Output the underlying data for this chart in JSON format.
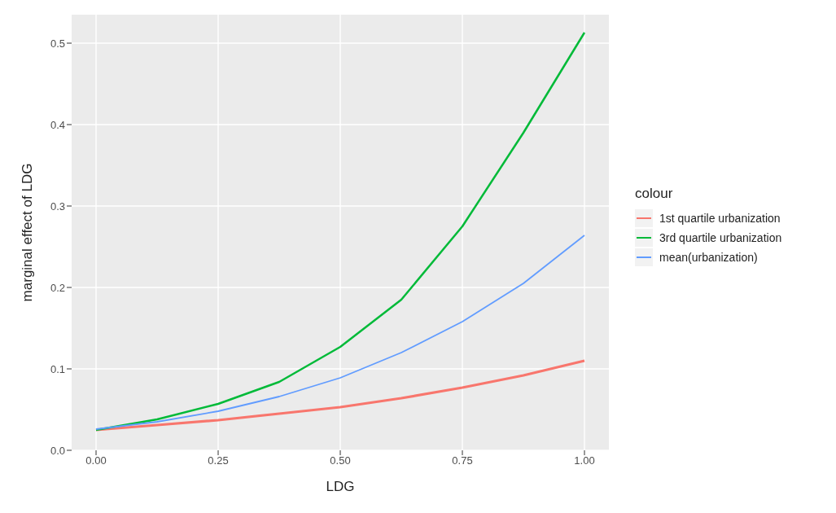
{
  "chart_data": {
    "type": "line",
    "xlabel": "LDG",
    "ylabel": "marginal effect of LDG",
    "legend_title": "colour",
    "legend": "right",
    "grid": true,
    "marker": "none",
    "line_style": "solid",
    "x": [
      0,
      0.125,
      0.25,
      0.375,
      0.5,
      0.625,
      0.75,
      0.875,
      1
    ],
    "xlim": [
      -0.05,
      1.05
    ],
    "xticks": [
      {
        "value": 0,
        "label": "0.00"
      },
      {
        "value": 0.25,
        "label": "0.25"
      },
      {
        "value": 0.5,
        "label": "0.50"
      },
      {
        "value": 0.75,
        "label": "0.75"
      },
      {
        "value": 1,
        "label": "1.00"
      }
    ],
    "ylim": [
      0,
      0.535
    ],
    "yticks": [
      {
        "value": 0,
        "label": "0.0"
      },
      {
        "value": 0.1,
        "label": "0.1"
      },
      {
        "value": 0.2,
        "label": "0.2"
      },
      {
        "value": 0.3,
        "label": "0.3"
      },
      {
        "value": 0.4,
        "label": "0.4"
      },
      {
        "value": 0.5,
        "label": "0.5"
      }
    ],
    "series": [
      {
        "name": "1st quartile urbanization",
        "color": "#f8766d",
        "values": [
          0.025,
          0.031,
          0.037,
          0.045,
          0.053,
          0.064,
          0.077,
          0.092,
          0.11
        ]
      },
      {
        "name": "3rd quartile urbanization",
        "color": "#00ba38",
        "values": [
          0.025,
          0.038,
          0.057,
          0.084,
          0.127,
          0.185,
          0.275,
          0.39,
          0.513
        ]
      },
      {
        "name": "mean(urbanization)",
        "color": "#619cff",
        "values": [
          0.026,
          0.035,
          0.048,
          0.066,
          0.089,
          0.12,
          0.158,
          0.205,
          0.264
        ]
      }
    ]
  }
}
